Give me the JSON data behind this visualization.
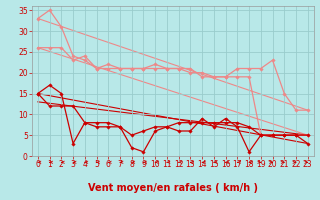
{
  "background_color": "#b8e8e8",
  "grid_color": "#99cccc",
  "xlim": [
    -0.5,
    23.5
  ],
  "ylim": [
    0,
    36
  ],
  "yticks": [
    0,
    5,
    10,
    15,
    20,
    25,
    30,
    35
  ],
  "xticks": [
    0,
    1,
    2,
    3,
    4,
    5,
    6,
    7,
    8,
    9,
    10,
    11,
    12,
    13,
    14,
    15,
    16,
    17,
    18,
    19,
    20,
    21,
    22,
    23
  ],
  "xlabel": "Vent moyen/en rafales ( km/h )",
  "xlabel_color": "#cc0000",
  "xlabel_fontsize": 7,
  "tick_color": "#cc0000",
  "tick_fontsize": 5.5,
  "series_light": [
    {
      "x": [
        0,
        1,
        2,
        3,
        4,
        5,
        6,
        7,
        8,
        9,
        10,
        11,
        12,
        13,
        14,
        15,
        16,
        17,
        18,
        19,
        20,
        21,
        22,
        23
      ],
      "y": [
        33,
        35,
        31,
        24,
        23,
        21,
        22,
        21,
        21,
        21,
        22,
        21,
        21,
        21,
        19,
        19,
        19,
        21,
        21,
        21,
        23,
        15,
        11,
        11
      ],
      "color": "#ee8888",
      "lw": 0.9,
      "marker": "D",
      "ms": 1.8
    },
    {
      "x": [
        0,
        1,
        2,
        3,
        4,
        5,
        6,
        7,
        8,
        9,
        10,
        11,
        12,
        13,
        14,
        15,
        16,
        17,
        18,
        19,
        20,
        21,
        22,
        23
      ],
      "y": [
        26,
        26,
        26,
        23,
        24,
        21,
        21,
        21,
        21,
        21,
        21,
        21,
        21,
        20,
        20,
        19,
        19,
        19,
        19,
        5,
        5,
        5,
        5,
        5
      ],
      "color": "#ee8888",
      "lw": 0.9,
      "marker": "D",
      "ms": 1.8
    }
  ],
  "series_dark": [
    {
      "x": [
        0,
        1,
        2,
        3,
        4,
        5,
        6,
        7,
        8,
        9,
        10,
        11,
        12,
        13,
        14,
        15,
        16,
        17,
        18,
        19,
        20,
        21,
        22,
        23
      ],
      "y": [
        15,
        17,
        15,
        3,
        8,
        8,
        8,
        7,
        2,
        1,
        6,
        7,
        6,
        6,
        9,
        7,
        9,
        7,
        1,
        5,
        5,
        5,
        5,
        3
      ],
      "color": "#cc0000",
      "lw": 0.9,
      "marker": "D",
      "ms": 1.8
    },
    {
      "x": [
        0,
        1,
        2,
        3,
        4,
        5,
        6,
        7,
        8,
        9,
        10,
        11,
        12,
        13,
        14,
        15,
        16,
        17,
        18,
        19,
        20,
        21,
        22,
        23
      ],
      "y": [
        15,
        12,
        12,
        12,
        8,
        7,
        7,
        7,
        5,
        6,
        7,
        7,
        8,
        8,
        8,
        8,
        8,
        8,
        7,
        5,
        5,
        5,
        5,
        5
      ],
      "color": "#cc0000",
      "lw": 0.9,
      "marker": "D",
      "ms": 1.8
    }
  ],
  "trend_dark": [
    {
      "x": [
        0,
        23
      ],
      "y": [
        15,
        3
      ]
    },
    {
      "x": [
        0,
        23
      ],
      "y": [
        13,
        5
      ]
    }
  ],
  "trend_light": [
    {
      "x": [
        0,
        23
      ],
      "y": [
        33,
        11
      ]
    },
    {
      "x": [
        0,
        23
      ],
      "y": [
        26,
        5
      ]
    }
  ],
  "arrow_directions": [
    "left",
    "left",
    "left",
    "left",
    "left",
    "left",
    "left",
    "left",
    "left",
    "left",
    "left",
    "left",
    "left",
    "left",
    "left",
    "left",
    "left",
    "left",
    "left",
    "right",
    "right",
    "right",
    "right",
    "right"
  ]
}
